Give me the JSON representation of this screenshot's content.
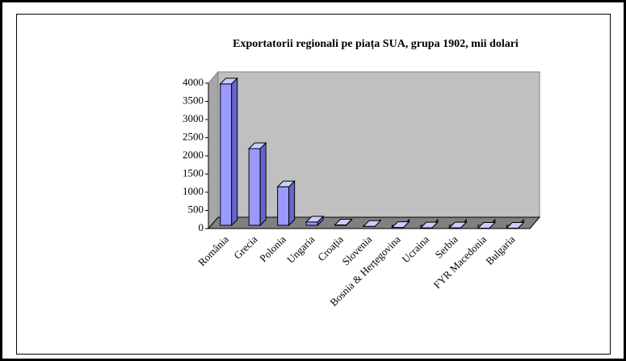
{
  "chart_data": {
    "type": "bar3d",
    "title": "Exportatorii regionali pe piața SUA, grupa 1902, mii dolari",
    "categories": [
      "România",
      "Grecia",
      "Polonia",
      "Ungaria",
      "Croația",
      "Slovenia",
      "Bosnia & Herțegovina",
      "Ucraina",
      "Serbia",
      "FYR Macedonia",
      "Bulgaria"
    ],
    "values": [
      3980,
      2200,
      1150,
      180,
      100,
      60,
      30,
      20,
      20,
      10,
      10
    ],
    "color": "#9999ff",
    "ylim": [
      0,
      4000
    ],
    "yticks": [
      0,
      500,
      1000,
      1500,
      2000,
      2500,
      3000,
      3500,
      4000
    ],
    "grid": false
  }
}
